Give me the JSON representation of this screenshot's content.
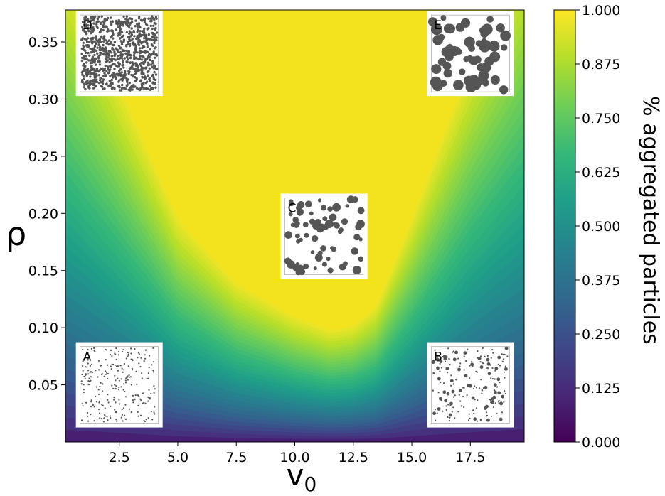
{
  "chart_data": {
    "type": "heatmap",
    "subtype": "filled-contour",
    "title": "",
    "xlabel": "v",
    "xlabel_subscript": "0",
    "ylabel": "ρ",
    "xlim": [
      0.2,
      19.8
    ],
    "ylim": [
      0.0,
      0.378
    ],
    "x_ticks": [
      2.5,
      5.0,
      7.5,
      10.0,
      12.5,
      15.0,
      17.5
    ],
    "x_tick_labels": [
      "2.5",
      "5.0",
      "7.5",
      "10.0",
      "12.5",
      "15.0",
      "17.5"
    ],
    "y_ticks": [
      0.05,
      0.1,
      0.15,
      0.2,
      0.25,
      0.3,
      0.35
    ],
    "y_tick_labels": [
      "0.05",
      "0.10",
      "0.15",
      "0.20",
      "0.25",
      "0.30",
      "0.35"
    ],
    "colormap": "viridis",
    "colorbar": {
      "label": "% aggregated particles",
      "range": [
        0.0,
        1.0
      ],
      "ticks": [
        0.0,
        0.125,
        0.25,
        0.375,
        0.5,
        0.625,
        0.75,
        0.875,
        1.0
      ],
      "tick_labels": [
        "0.000",
        "0.125",
        "0.250",
        "0.375",
        "0.500",
        "0.625",
        "0.750",
        "0.875",
        "1.000"
      ],
      "levels": 40
    },
    "saturation_boundary_y": {
      "x": [
        0.2,
        2.5,
        5.0,
        7.5,
        10.0,
        11.5,
        12.5,
        13.5,
        15.0,
        17.5,
        19.8
      ],
      "y": [
        0.43,
        0.32,
        0.2,
        0.142,
        0.112,
        0.1,
        0.104,
        0.122,
        0.2,
        0.34,
        0.45
      ]
    },
    "insets": [
      {
        "label": "A",
        "v0": 2.5,
        "rho": 0.05,
        "pattern": "dilute"
      },
      {
        "label": "B",
        "v0": 17.5,
        "rho": 0.05,
        "pattern": "dilute-clusters"
      },
      {
        "label": "C",
        "v0": 11.25,
        "rho": 0.18,
        "pattern": "blobs"
      },
      {
        "label": "D",
        "v0": 2.5,
        "rho": 0.34,
        "pattern": "dense"
      },
      {
        "label": "E",
        "v0": 17.5,
        "rho": 0.34,
        "pattern": "labyrinth"
      }
    ]
  },
  "colors": {
    "viridis_stops": [
      "#440154",
      "#482878",
      "#3e4989",
      "#31688e",
      "#26828e",
      "#1f9e89",
      "#35b779",
      "#6ece58",
      "#b5de2b",
      "#fde725"
    ],
    "yellow": "#f2e31e",
    "grain": "#555555",
    "inset_bg": "#ffffff"
  }
}
